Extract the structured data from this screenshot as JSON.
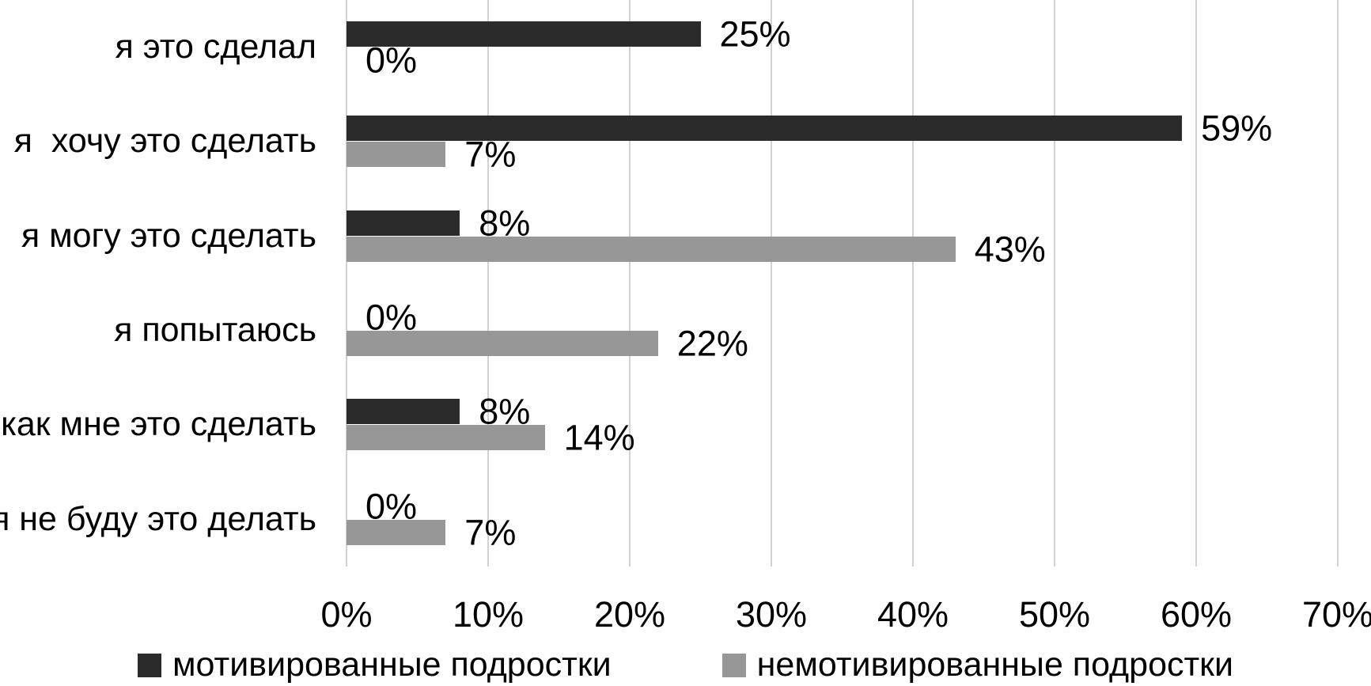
{
  "chart_data": {
    "type": "bar",
    "orientation": "horizontal",
    "title": "",
    "xlabel": "",
    "ylabel": "",
    "xlim": [
      0,
      70
    ],
    "grid": "vertical",
    "legend_position": "bottom",
    "x_ticks": [
      "0%",
      "10%",
      "20%",
      "30%",
      "40%",
      "50%",
      "60%",
      "70%"
    ],
    "categories": [
      "я это сделал",
      "я  хочу это сделать",
      "я могу это сделать",
      "я попытаюсь",
      "как мне это сделать",
      "я не буду это делать"
    ],
    "series": [
      {
        "name": "мотивированные подростки",
        "color": "#2b2b2b",
        "values": [
          25,
          59,
          8,
          0,
          8,
          0
        ],
        "labels": [
          "25%",
          "59%",
          "8%",
          "0%",
          "8%",
          "0%"
        ]
      },
      {
        "name": "немотивированные подростки",
        "color": "#979797",
        "values": [
          0,
          7,
          43,
          22,
          14,
          7
        ],
        "labels": [
          "0%",
          "7%",
          "43%",
          "22%",
          "14%",
          "7%"
        ]
      }
    ],
    "colors": {
      "gridline": "#d2d2d2",
      "text": "#000000",
      "background": "#ffffff"
    }
  }
}
